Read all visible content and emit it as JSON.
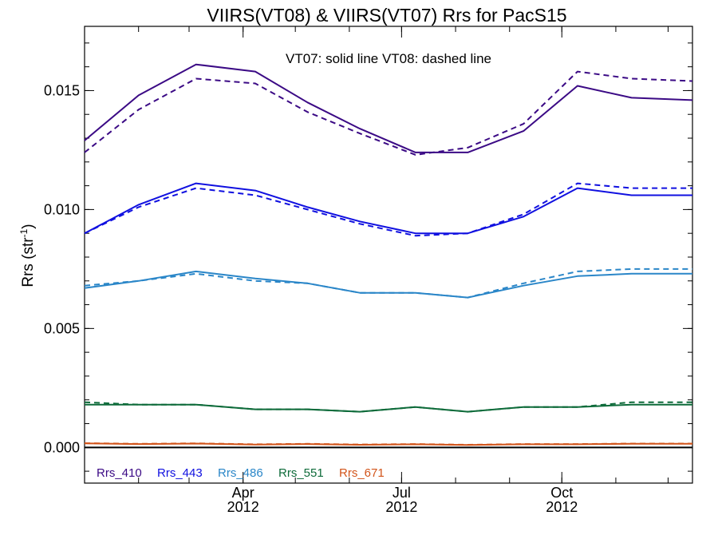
{
  "chart_data": {
    "type": "line",
    "title": "VIIRS(VT08) & VIIRS(VT07)  Rrs for PacS15",
    "annotation": "VT07: solid line   VT08: dashed line",
    "ylabel_main": "Rrs (str",
    "ylabel_sup": "-1",
    "ylabel_end": ")",
    "xlabel": "",
    "ylim": [
      -0.0015,
      0.0177
    ],
    "xlim": [
      "2012-01-01",
      "2012-12-15"
    ],
    "yticks": [
      0.0,
      0.005,
      0.01,
      0.015
    ],
    "ytick_labels": [
      "0.000",
      "0.005",
      "0.010",
      "0.015"
    ],
    "xticks": [
      {
        "date": "2012-04-01",
        "label": "Apr",
        "year": "2012"
      },
      {
        "date": "2012-07-01",
        "label": "Jul",
        "year": "2012"
      },
      {
        "date": "2012-10-01",
        "label": "Oct",
        "year": "2012"
      }
    ],
    "zero_line": 0.0,
    "x": [
      "2012-01-01",
      "2012-02-01",
      "2012-03-05",
      "2012-04-08",
      "2012-05-08",
      "2012-06-07",
      "2012-07-09",
      "2012-08-08",
      "2012-09-09",
      "2012-10-10",
      "2012-11-10",
      "2012-12-15"
    ],
    "series": [
      {
        "name": "Rrs_410",
        "color": "#3b0a85",
        "style": "solid",
        "values": [
          0.0129,
          0.0148,
          0.0161,
          0.0158,
          0.0145,
          0.0134,
          0.0124,
          0.0124,
          0.0133,
          0.0152,
          0.0147,
          0.0146
        ]
      },
      {
        "name": "Rrs_410",
        "color": "#3b0a85",
        "style": "dashed",
        "values": [
          0.0124,
          0.0142,
          0.0155,
          0.0153,
          0.0141,
          0.0132,
          0.0123,
          0.0126,
          0.0136,
          0.0158,
          0.0155,
          0.0154
        ]
      },
      {
        "name": "Rrs_443",
        "color": "#1010e0",
        "style": "solid",
        "values": [
          0.009,
          0.0102,
          0.0111,
          0.0108,
          0.0101,
          0.0095,
          0.009,
          0.009,
          0.0097,
          0.0109,
          0.0106,
          0.0106
        ]
      },
      {
        "name": "Rrs_443",
        "color": "#1010e0",
        "style": "dashed",
        "values": [
          0.009,
          0.0101,
          0.0109,
          0.0106,
          0.01,
          0.0094,
          0.0089,
          0.009,
          0.0098,
          0.0111,
          0.0109,
          0.0109
        ]
      },
      {
        "name": "Rrs_486",
        "color": "#2a86c8",
        "style": "solid",
        "values": [
          0.0067,
          0.007,
          0.0074,
          0.0071,
          0.0069,
          0.0065,
          0.0065,
          0.0063,
          0.0068,
          0.0072,
          0.0073,
          0.0073
        ]
      },
      {
        "name": "Rrs_486",
        "color": "#2a86c8",
        "style": "dashed",
        "values": [
          0.0068,
          0.007,
          0.0073,
          0.007,
          0.0069,
          0.0065,
          0.0065,
          0.0063,
          0.0069,
          0.0074,
          0.0075,
          0.0075
        ]
      },
      {
        "name": "Rrs_551",
        "color": "#0e6b3a",
        "style": "solid",
        "values": [
          0.0018,
          0.0018,
          0.0018,
          0.0016,
          0.0016,
          0.0015,
          0.0017,
          0.0015,
          0.0017,
          0.0017,
          0.0018,
          0.0018
        ]
      },
      {
        "name": "Rrs_551",
        "color": "#0e6b3a",
        "style": "dashed",
        "values": [
          0.0019,
          0.0018,
          0.0018,
          0.0016,
          0.0016,
          0.0015,
          0.0017,
          0.0015,
          0.0017,
          0.0017,
          0.0019,
          0.0019
        ]
      },
      {
        "name": "Rrs_671",
        "color": "#d2541a",
        "style": "solid",
        "values": [
          0.00017,
          0.00014,
          0.00016,
          0.00012,
          0.00014,
          0.00011,
          0.00013,
          0.0001,
          0.00013,
          0.00013,
          0.00015,
          0.00015
        ]
      },
      {
        "name": "Rrs_671",
        "color": "#d2541a",
        "style": "dashed",
        "values": [
          0.00018,
          0.00015,
          0.00017,
          0.00013,
          0.00015,
          0.00012,
          0.00014,
          0.00011,
          0.00014,
          0.00014,
          0.00016,
          0.00016
        ]
      }
    ],
    "legend": [
      {
        "name": "Rrs_410",
        "color": "#3b0a85"
      },
      {
        "name": "Rrs_443",
        "color": "#1010e0"
      },
      {
        "name": "Rrs_486",
        "color": "#2a86c8"
      },
      {
        "name": "Rrs_551",
        "color": "#0e6b3a"
      },
      {
        "name": "Rrs_671",
        "color": "#d2541a"
      }
    ],
    "legend_placement": "bottom-left"
  }
}
